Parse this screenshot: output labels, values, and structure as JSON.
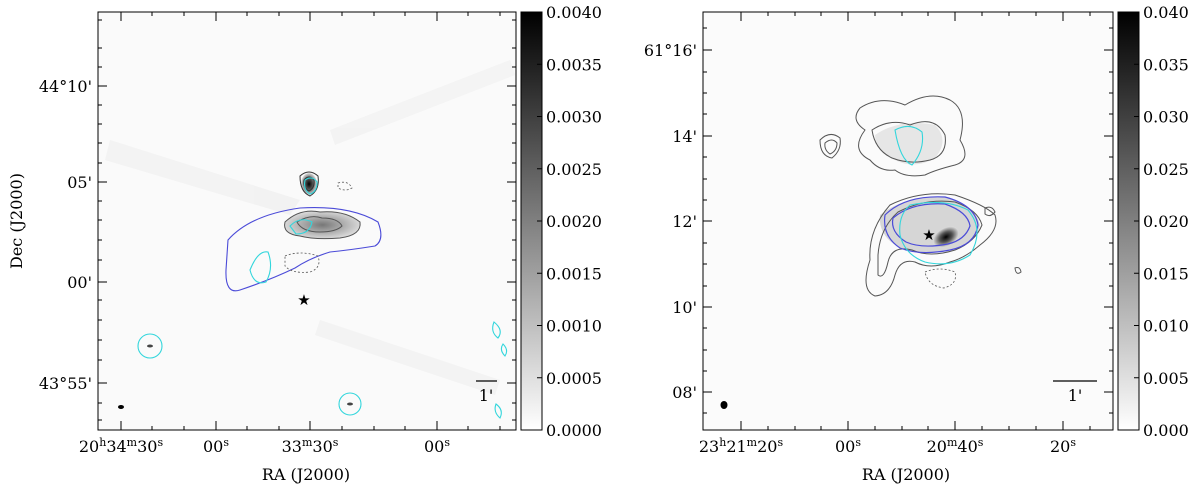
{
  "chart_data": [
    {
      "type": "heatmap",
      "title": "",
      "xlabel": "RA (J2000)",
      "ylabel": "Dec (J2000)",
      "x_ticks": [
        "20h34m30s",
        "00s",
        "33m30s",
        "00s"
      ],
      "y_ticks": [
        "44°10'",
        "05'",
        "00'",
        "43°55'"
      ],
      "colorbar": {
        "ticks": [
          "0.0000",
          "0.0005",
          "0.0010",
          "0.0015",
          "0.0020",
          "0.0025",
          "0.0030",
          "0.0035",
          "0.0040"
        ],
        "min": 0.0,
        "max": 0.004
      },
      "scale_bar_label": "1'",
      "contour_colors": {
        "gray": "#555555",
        "blue": "#4b4bd8",
        "cyan": "#33d6dc"
      },
      "source_marker": "star-icon"
    },
    {
      "type": "heatmap",
      "title": "",
      "xlabel": "RA (J2000)",
      "ylabel": "",
      "x_ticks": [
        "23h21m20s",
        "00s",
        "20m40s",
        "20s"
      ],
      "y_ticks": [
        "61°16'",
        "14'",
        "12'",
        "10'",
        "08'"
      ],
      "colorbar": {
        "ticks": [
          "0.000",
          "0.005",
          "0.010",
          "0.015",
          "0.020",
          "0.025",
          "0.030",
          "0.035",
          "0.040"
        ],
        "min": 0.0,
        "max": 0.04
      },
      "scale_bar_label": "1'",
      "contour_colors": {
        "gray": "#555555",
        "blue": "#4b4bd8",
        "cyan": "#33d6dc"
      },
      "source_marker": "star-icon"
    }
  ]
}
